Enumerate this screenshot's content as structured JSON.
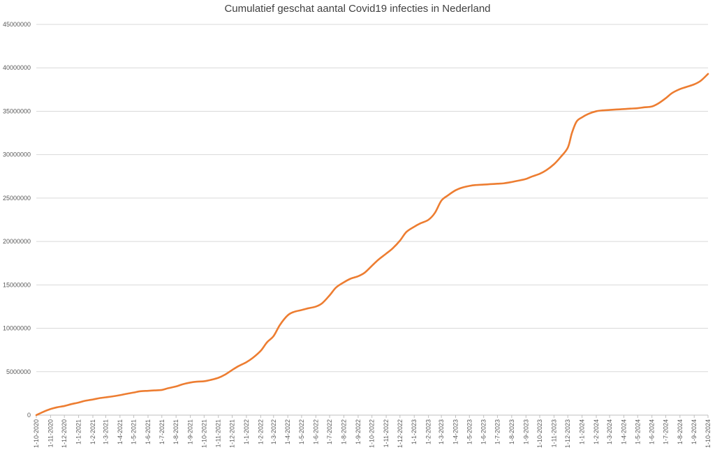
{
  "chart_data": {
    "type": "line",
    "title": "Cumulatief geschat aantal Covid19 infecties in Nederland",
    "xlabel": "",
    "ylabel": "",
    "ylim": [
      0,
      45000000
    ],
    "y_ticks": [
      "0",
      "5000000",
      "10000000",
      "15000000",
      "20000000",
      "25000000",
      "30000000",
      "35000000",
      "40000000",
      "45000000"
    ],
    "x_ticks": [
      "1-10-2020",
      "1-11-2020",
      "1-12-2020",
      "1-1-2021",
      "1-2-2021",
      "1-3-2021",
      "1-4-2021",
      "1-5-2021",
      "1-6-2021",
      "1-7-2021",
      "1-8-2021",
      "1-9-2021",
      "1-10-2021",
      "1-11-2021",
      "1-12-2021",
      "1-1-2022",
      "1-2-2022",
      "1-3-2022",
      "1-4-2022",
      "1-5-2022",
      "1-6-2022",
      "1-7-2022",
      "1-8-2022",
      "1-9-2022",
      "1-10-2022",
      "1-11-2022",
      "1-12-2022",
      "1-1-2023",
      "1-2-2023",
      "1-3-2023",
      "1-4-2023",
      "1-5-2023",
      "1-6-2023",
      "1-7-2023",
      "1-8-2023",
      "1-9-2023",
      "1-10-2023",
      "1-11-2023",
      "1-12-2023",
      "1-1-2024",
      "1-2-2024",
      "1-3-2024",
      "1-4-2024",
      "1-5-2024",
      "1-6-2024",
      "1-7-2024",
      "1-8-2024",
      "1-9-2024",
      "1-10-2024"
    ],
    "grid": true,
    "legend": "none",
    "line_color": "#ED7D31",
    "series": [
      {
        "x": [
          "1-10-2020",
          "15-10-2020",
          "1-11-2020",
          "15-11-2020",
          "1-12-2020",
          "15-12-2020",
          "1-1-2021",
          "15-1-2021",
          "1-2-2021",
          "15-2-2021",
          "1-3-2021",
          "15-3-2021",
          "1-4-2021",
          "15-4-2021",
          "1-5-2021",
          "15-5-2021",
          "1-6-2021",
          "15-6-2021",
          "1-7-2021",
          "15-7-2021",
          "1-8-2021",
          "15-8-2021",
          "1-9-2021",
          "15-9-2021",
          "1-10-2021",
          "15-10-2021",
          "1-11-2021",
          "15-11-2021",
          "1-12-2021",
          "15-12-2021",
          "1-1-2022",
          "15-1-2022",
          "1-2-2022",
          "15-2-2022",
          "1-3-2022",
          "15-3-2022",
          "1-4-2022",
          "15-4-2022",
          "1-5-2022",
          "15-5-2022",
          "1-6-2022",
          "15-6-2022",
          "1-7-2022",
          "15-7-2022",
          "1-8-2022",
          "15-8-2022",
          "1-9-2022",
          "15-9-2022",
          "1-10-2022",
          "15-10-2022",
          "1-11-2022",
          "15-11-2022",
          "1-12-2022",
          "15-12-2022",
          "1-1-2023",
          "15-1-2023",
          "1-2-2023",
          "15-2-2023",
          "1-3-2023",
          "15-3-2023",
          "1-4-2023",
          "15-4-2023",
          "1-5-2023",
          "15-5-2023",
          "1-6-2023",
          "15-6-2023",
          "1-7-2023",
          "15-7-2023",
          "1-8-2023",
          "15-8-2023",
          "1-9-2023",
          "15-9-2023",
          "1-10-2023",
          "15-10-2023",
          "1-11-2023",
          "15-11-2023",
          "1-12-2023",
          "10-12-2023",
          "20-12-2023",
          "1-1-2024",
          "15-1-2024",
          "1-2-2024",
          "15-2-2024",
          "1-3-2024",
          "15-3-2024",
          "1-4-2024",
          "15-4-2024",
          "1-5-2024",
          "15-5-2024",
          "1-6-2024",
          "15-6-2024",
          "1-7-2024",
          "15-7-2024",
          "1-8-2024",
          "15-8-2024",
          "1-9-2024",
          "15-9-2024",
          "1-10-2024"
        ],
        "values": [
          0,
          350000,
          700000,
          900000,
          1050000,
          1250000,
          1450000,
          1650000,
          1800000,
          1950000,
          2050000,
          2150000,
          2300000,
          2450000,
          2600000,
          2750000,
          2800000,
          2850000,
          2900000,
          3100000,
          3300000,
          3550000,
          3750000,
          3850000,
          3900000,
          4050000,
          4300000,
          4650000,
          5200000,
          5650000,
          6100000,
          6600000,
          7400000,
          8400000,
          9100000,
          10400000,
          11500000,
          11900000,
          12100000,
          12300000,
          12500000,
          12900000,
          13800000,
          14700000,
          15300000,
          15700000,
          16000000,
          16400000,
          17200000,
          17900000,
          18600000,
          19200000,
          20100000,
          21100000,
          21700000,
          22100000,
          22500000,
          23300000,
          24700000,
          25300000,
          25900000,
          26200000,
          26400000,
          26500000,
          26550000,
          26600000,
          26650000,
          26700000,
          26850000,
          27000000,
          27200000,
          27500000,
          27800000,
          28200000,
          28900000,
          29700000,
          30800000,
          32500000,
          33800000,
          34300000,
          34700000,
          35000000,
          35100000,
          35150000,
          35200000,
          35250000,
          35300000,
          35350000,
          35450000,
          35550000,
          35900000,
          36500000,
          37100000,
          37550000,
          37800000,
          38100000,
          38500000,
          39300000
        ]
      }
    ]
  }
}
